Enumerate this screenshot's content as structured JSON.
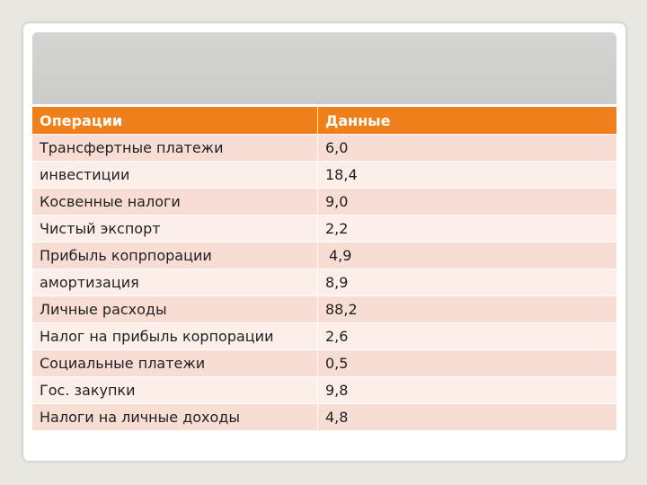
{
  "table": {
    "headers": [
      "Операции",
      "Данные"
    ],
    "rows": [
      {
        "operation": "Трансфертные платежи",
        "value": "6,0"
      },
      {
        "operation": "инвестиции",
        "value": "18,4"
      },
      {
        "operation": "Косвенные налоги",
        "value": "9,0"
      },
      {
        "operation": "Чистый экспорт",
        "value": "2,2"
      },
      {
        "operation": "Прибыль копрпорации",
        "value": "4,9"
      },
      {
        "operation": "амортизация",
        "value": "8,9"
      },
      {
        "operation": "Личные расходы",
        "value": "88,2"
      },
      {
        "operation": "Налог на прибыль корпорации",
        "value": "2,6"
      },
      {
        "operation": "Социальные платежи",
        "value": "0,5"
      },
      {
        "operation": "Гос. закупки",
        "value": "9,8"
      },
      {
        "operation": "Налоги на личные доходы",
        "value": "4,8"
      }
    ]
  },
  "colors": {
    "header_bg": "#ee7f1a",
    "row_dark": "#f8ddd5",
    "row_light": "#fcefea",
    "title_band": "#cfcfcd"
  }
}
